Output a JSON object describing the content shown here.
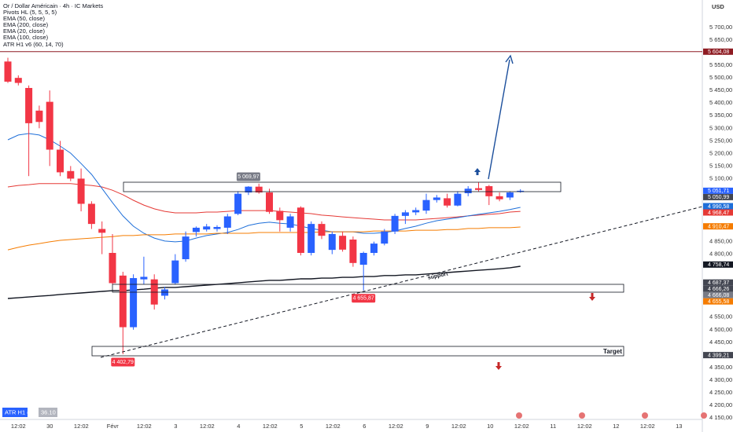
{
  "chart_data": {
    "type": "candlestick",
    "title": "Or / Dollar Américain · 4h · IC Markets",
    "indicators": [
      "Pivots HL (5, 5, 5, 5)",
      "ATR H1 v6 (60, 14, 70)"
    ],
    "currency": "USD",
    "up_color": "#2962ff",
    "down_color": "#f23645",
    "open": [
      5565,
      5500,
      5460,
      5370,
      5405,
      5215,
      5130,
      5100,
      5000,
      4900,
      4805,
      4715,
      4510,
      4700,
      4700,
      4635,
      4685,
      4780,
      4888,
      4898,
      4900,
      4905,
      4960,
      5045,
      5068,
      5045,
      4972,
      4905,
      4985,
      4805,
      4920,
      4817,
      4873,
      4858,
      4758,
      4805,
      4842,
      4890,
      4952,
      4966,
      4973,
      5015,
      5022,
      4993,
      5042,
      5062,
      5070,
      5030,
      5025,
      5047
    ],
    "high": [
      5580,
      5510,
      5470,
      5390,
      5450,
      5250,
      5150,
      5140,
      5010,
      4930,
      4880,
      4730,
      4720,
      4790,
      4720,
      4670,
      4800,
      4890,
      4910,
      4920,
      4915,
      4960,
      5050,
      5069.97,
      5080,
      5060,
      4985,
      4960,
      4990,
      4930,
      4930,
      4890,
      4890,
      4870,
      4810,
      4850,
      4900,
      4960,
      4975,
      4985,
      5040,
      5035,
      5040,
      5050,
      5070,
      5085,
      5075,
      5045,
      5050,
      5058
    ],
    "low": [
      5480,
      5470,
      5110,
      5300,
      5150,
      5110,
      5090,
      4970,
      4900,
      4800,
      4680,
      4402.79,
      4500,
      4680,
      4580,
      4620,
      4680,
      4770,
      4870,
      4890,
      4890,
      4880,
      4955,
      5035,
      5040,
      4960,
      4890,
      4890,
      4795,
      4795,
      4860,
      4800,
      4810,
      4750,
      4655.87,
      4795,
      4835,
      4880,
      4920,
      4955,
      4960,
      5005,
      4985,
      4990,
      5030,
      5050,
      4995,
      5010,
      5015,
      5044
    ],
    "close": [
      5485,
      5480,
      5320,
      5325,
      5215,
      5125,
      5100,
      5000,
      4920,
      4885,
      4685,
      4510,
      4705,
      4710,
      4600,
      4660,
      4775,
      4870,
      4905,
      4910,
      4908,
      4950,
      5040,
      5068,
      5045,
      4968,
      4935,
      4950,
      4805,
      4920,
      4873,
      4880,
      4818,
      4765,
      4805,
      4842,
      4890,
      4952,
      4966,
      4975,
      5015,
      5025,
      4993,
      5040,
      5060,
      5055,
      5030,
      5018,
      5045,
      5051.71
    ],
    "series": [
      {
        "name": "EMA (50, close)",
        "color": "#e53935",
        "values": [
          5067,
          5073,
          5076,
          5080,
          5080,
          5080,
          5080,
          5076,
          5073,
          5067,
          5054,
          5036,
          5014,
          4995,
          4980,
          4970,
          4964,
          4964,
          4964,
          4967,
          4967,
          4970,
          4973,
          4973,
          4973,
          4973,
          4970,
          4967,
          4964,
          4961,
          4955,
          4952,
          4948,
          4945,
          4942,
          4939,
          4936,
          4936,
          4936,
          4936,
          4939,
          4942,
          4945,
          4948,
          4952,
          4955,
          4958,
          4961,
          4967,
          4970
        ]
      },
      {
        "name": "EMA (200, close)",
        "color": "#131722",
        "values": [
          4624,
          4627,
          4630,
          4633,
          4636,
          4640,
          4643,
          4646,
          4649,
          4652,
          4655,
          4655,
          4658,
          4661,
          4665,
          4668,
          4668,
          4671,
          4674,
          4677,
          4680,
          4683,
          4686,
          4690,
          4693,
          4696,
          4696,
          4699,
          4702,
          4702,
          4705,
          4705,
          4708,
          4708,
          4711,
          4711,
          4715,
          4715,
          4718,
          4718,
          4721,
          4724,
          4727,
          4730,
          4733,
          4736,
          4739,
          4742,
          4746,
          4752
        ]
      },
      {
        "name": "EMA (20, close)",
        "color": "#1e6fd9",
        "values": [
          5254,
          5273,
          5279,
          5273,
          5254,
          5229,
          5201,
          5160,
          5117,
          5061,
          5005,
          4952,
          4911,
          4883,
          4864,
          4852,
          4849,
          4852,
          4864,
          4874,
          4880,
          4886,
          4898,
          4914,
          4923,
          4927,
          4923,
          4920,
          4911,
          4902,
          4895,
          4889,
          4889,
          4889,
          4883,
          4883,
          4886,
          4892,
          4902,
          4911,
          4923,
          4933,
          4939,
          4945,
          4952,
          4958,
          4964,
          4970,
          4977,
          4986
        ]
      },
      {
        "name": "EMA (100, close)",
        "color": "#f57c00",
        "values": [
          4817,
          4827,
          4836,
          4842,
          4849,
          4855,
          4858,
          4861,
          4864,
          4867,
          4870,
          4874,
          4874,
          4877,
          4877,
          4877,
          4880,
          4880,
          4880,
          4880,
          4883,
          4883,
          4883,
          4883,
          4886,
          4886,
          4886,
          4886,
          4886,
          4886,
          4889,
          4889,
          4889,
          4889,
          4889,
          4892,
          4892,
          4892,
          4892,
          4895,
          4895,
          4895,
          4898,
          4898,
          4902,
          4902,
          4905,
          4905,
          4905,
          4908
        ]
      }
    ],
    "ylim": [
      4150,
      5750
    ],
    "yticks": [
      {
        "value": 5700,
        "label": "5 700,00"
      },
      {
        "value": 5650,
        "label": "5 650,00"
      },
      {
        "value": 5550,
        "label": "5 550,00"
      },
      {
        "value": 5500,
        "label": "5 500,00"
      },
      {
        "value": 5450,
        "label": "5 450,00"
      },
      {
        "value": 5400,
        "label": "5 400,00"
      },
      {
        "value": 5350,
        "label": "5 350,00"
      },
      {
        "value": 5300,
        "label": "5 300,00"
      },
      {
        "value": 5250,
        "label": "5 250,00"
      },
      {
        "value": 5200,
        "label": "5 200,00"
      },
      {
        "value": 5150,
        "label": "5 150,00"
      },
      {
        "value": 5100,
        "label": "5 100,00"
      },
      {
        "value": 4850,
        "label": "4 850,00"
      },
      {
        "value": 4800,
        "label": "4 800,00"
      },
      {
        "value": 4550,
        "label": "4 550,00"
      },
      {
        "value": 4500,
        "label": "4 500,00"
      },
      {
        "value": 4450,
        "label": "4 450,00"
      },
      {
        "value": 4350,
        "label": "4 350,00"
      },
      {
        "value": 4300,
        "label": "4 300,00"
      },
      {
        "value": 4250,
        "label": "4 250,00"
      },
      {
        "value": 4200,
        "label": "4 200,00"
      },
      {
        "value": 4150,
        "label": "4 150,00"
      }
    ],
    "time_labels": [
      "12:02",
      "30",
      "12:02",
      "Févr",
      "12:02",
      "3",
      "12:02",
      "4",
      "12:02",
      "5",
      "12:02",
      "6",
      "12:02",
      "9",
      "12:02",
      "10",
      "12:02",
      "11",
      "12:02",
      "12",
      "12:02",
      "13"
    ],
    "price_tags": [
      {
        "value": 5604.08,
        "label": "5 604,08",
        "color": "#8e1b22"
      },
      {
        "value": 5051.71,
        "label": "5 051,71",
        "color": "#2962ff"
      },
      {
        "value": 5050.99,
        "label": "5 050,99",
        "color": "#434651"
      },
      {
        "value": 4990.58,
        "label": "4 990,58",
        "color": "#1e6fd9"
      },
      {
        "value": 4968.47,
        "label": "4 968,47",
        "color": "#e53935"
      },
      {
        "value": 4910.47,
        "label": "4 910,47",
        "color": "#f57c00"
      },
      {
        "value": 4758.74,
        "label": "4 758,74",
        "color": "#131722"
      },
      {
        "value": 4687.37,
        "label": "4 687,37",
        "color": "#434651"
      },
      {
        "value": 4666.26,
        "label": "4 666,26",
        "color": "#434651"
      },
      {
        "value": 4666.08,
        "label": "4 666,08",
        "color": "#787b86"
      },
      {
        "value": 4655.58,
        "label": "4 655,58",
        "color": "#f57c00"
      },
      {
        "value": 4399.21,
        "label": "4 399,21",
        "color": "#434651"
      }
    ],
    "pivots": [
      {
        "value": 5069.97,
        "label": "5 069,97",
        "color": "#787b86",
        "candle": 23,
        "side": "above"
      },
      {
        "value": 4655.87,
        "label": "4 655,87",
        "color": "#f23645",
        "candle": 34,
        "side": "below"
      },
      {
        "value": 4402.79,
        "label": "4 402,79",
        "color": "#f23645",
        "candle": 11,
        "side": "below"
      }
    ],
    "annotations": {
      "support": "support",
      "target": "Target"
    },
    "atr": {
      "name": "ATR H1 (14)",
      "value": 36.1,
      "value_label": "36.10"
    }
  }
}
